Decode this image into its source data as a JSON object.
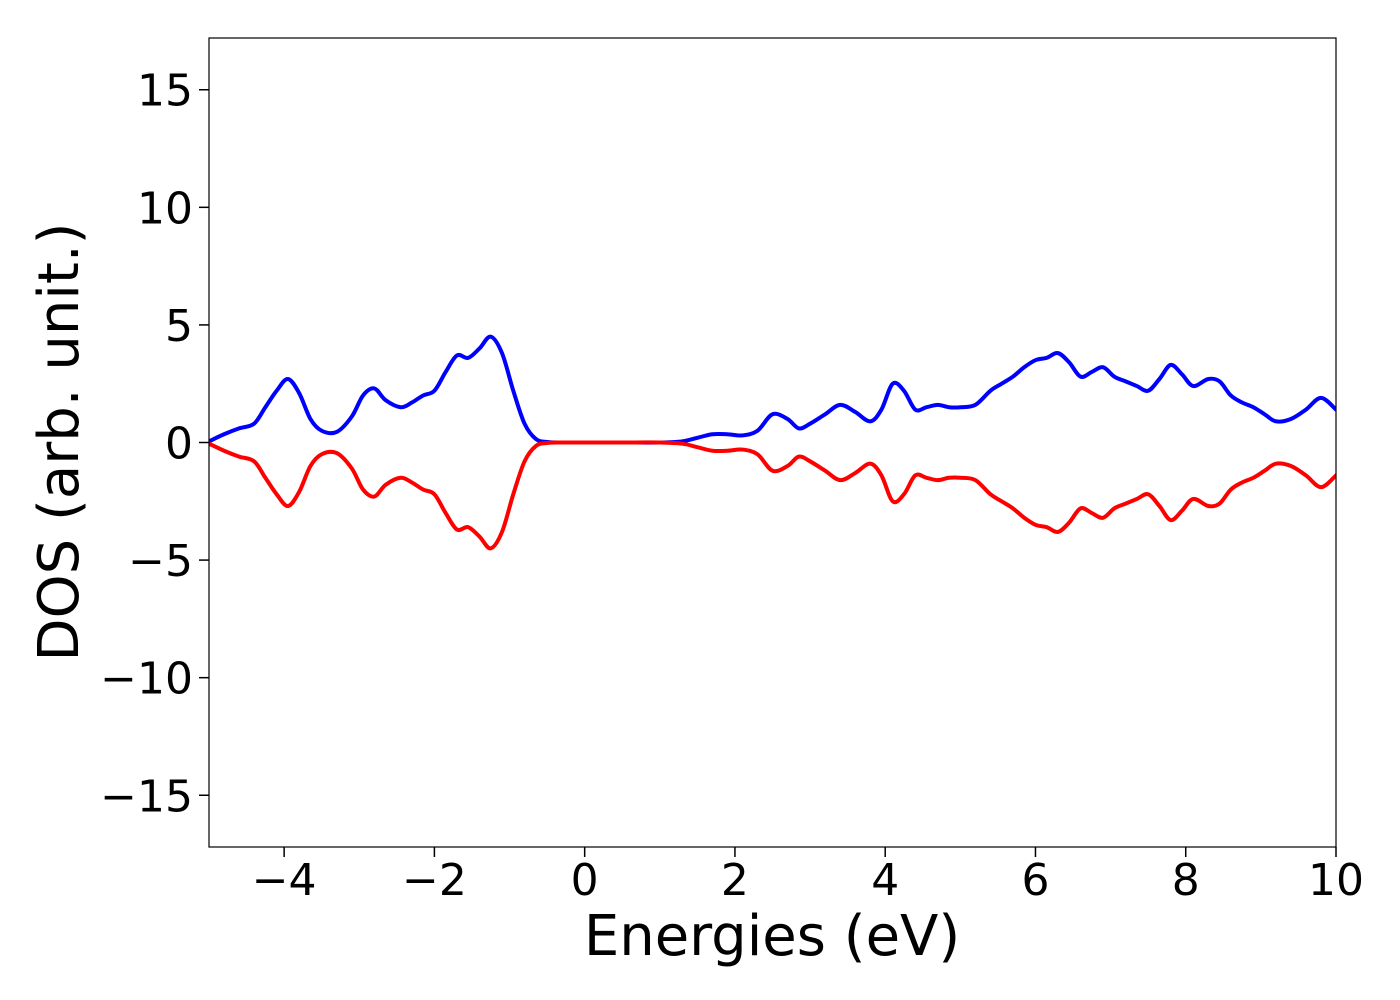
{
  "chart_data": {
    "type": "line",
    "title": "",
    "xlabel": "Energies (eV)",
    "ylabel": "DOS (arb. unit.)",
    "xlim": [
      -5,
      10
    ],
    "ylim": [
      -17.2,
      17.2
    ],
    "xticks": [
      -4,
      -2,
      0,
      2,
      4,
      6,
      8,
      10
    ],
    "xtick_labels": [
      "−4",
      "−2",
      "0",
      "2",
      "4",
      "6",
      "8",
      "10"
    ],
    "yticks": [
      15,
      10,
      5,
      0,
      -5,
      -10,
      -15
    ],
    "ytick_labels": [
      "15",
      "10",
      "5",
      "0",
      "−5",
      "−10",
      "−15"
    ],
    "grid": false,
    "legend": "none",
    "series": [
      {
        "color": "#0000ff",
        "x": [
          -5.0,
          -4.8,
          -4.6,
          -4.4,
          -4.25,
          -4.1,
          -3.95,
          -3.8,
          -3.65,
          -3.5,
          -3.3,
          -3.1,
          -2.95,
          -2.8,
          -2.65,
          -2.45,
          -2.3,
          -2.15,
          -2.0,
          -1.85,
          -1.7,
          -1.55,
          -1.4,
          -1.25,
          -1.1,
          -0.95,
          -0.8,
          -0.65,
          -0.5,
          -0.3,
          0.0,
          0.5,
          1.0,
          1.3,
          1.5,
          1.7,
          1.9,
          2.1,
          2.3,
          2.5,
          2.7,
          2.85,
          3.0,
          3.2,
          3.4,
          3.6,
          3.8,
          3.95,
          4.1,
          4.25,
          4.4,
          4.55,
          4.7,
          4.85,
          5.0,
          5.2,
          5.4,
          5.55,
          5.7,
          5.85,
          6.0,
          6.15,
          6.3,
          6.45,
          6.6,
          6.75,
          6.9,
          7.05,
          7.2,
          7.35,
          7.5,
          7.65,
          7.8,
          7.95,
          8.1,
          8.3,
          8.45,
          8.6,
          8.75,
          8.9,
          9.05,
          9.2,
          9.4,
          9.6,
          9.8,
          10.0
        ],
        "values": [
          0.05,
          0.35,
          0.6,
          0.8,
          1.5,
          2.2,
          2.7,
          2.1,
          1.0,
          0.5,
          0.45,
          1.1,
          2.0,
          2.3,
          1.8,
          1.5,
          1.7,
          2.0,
          2.2,
          3.0,
          3.7,
          3.6,
          4.0,
          4.5,
          3.8,
          2.2,
          0.8,
          0.15,
          0.02,
          0.0,
          0.0,
          0.0,
          0.0,
          0.05,
          0.2,
          0.35,
          0.35,
          0.3,
          0.5,
          1.2,
          1.0,
          0.6,
          0.8,
          1.2,
          1.6,
          1.3,
          0.9,
          1.4,
          2.5,
          2.2,
          1.4,
          1.5,
          1.6,
          1.5,
          1.5,
          1.6,
          2.2,
          2.5,
          2.8,
          3.2,
          3.5,
          3.6,
          3.8,
          3.4,
          2.8,
          3.0,
          3.2,
          2.8,
          2.6,
          2.4,
          2.2,
          2.7,
          3.3,
          2.9,
          2.4,
          2.7,
          2.6,
          2.0,
          1.7,
          1.5,
          1.2,
          0.9,
          1.0,
          1.4,
          1.9,
          1.4
        ]
      },
      {
        "color": "#ff0000",
        "x": [
          -5.0,
          -4.8,
          -4.6,
          -4.4,
          -4.25,
          -4.1,
          -3.95,
          -3.8,
          -3.65,
          -3.5,
          -3.3,
          -3.1,
          -2.95,
          -2.8,
          -2.65,
          -2.45,
          -2.3,
          -2.15,
          -2.0,
          -1.85,
          -1.7,
          -1.55,
          -1.4,
          -1.25,
          -1.1,
          -0.95,
          -0.8,
          -0.65,
          -0.5,
          -0.3,
          0.0,
          0.5,
          1.0,
          1.3,
          1.5,
          1.7,
          1.9,
          2.1,
          2.3,
          2.5,
          2.7,
          2.85,
          3.0,
          3.2,
          3.4,
          3.6,
          3.8,
          3.95,
          4.1,
          4.25,
          4.4,
          4.55,
          4.7,
          4.85,
          5.0,
          5.2,
          5.4,
          5.55,
          5.7,
          5.85,
          6.0,
          6.15,
          6.3,
          6.45,
          6.6,
          6.75,
          6.9,
          7.05,
          7.2,
          7.35,
          7.5,
          7.65,
          7.8,
          7.95,
          8.1,
          8.3,
          8.45,
          8.6,
          8.75,
          8.9,
          9.05,
          9.2,
          9.4,
          9.6,
          9.8,
          10.0
        ],
        "values": [
          -0.05,
          -0.35,
          -0.6,
          -0.8,
          -1.5,
          -2.2,
          -2.7,
          -2.1,
          -1.0,
          -0.5,
          -0.45,
          -1.1,
          -2.0,
          -2.3,
          -1.8,
          -1.5,
          -1.7,
          -2.0,
          -2.2,
          -3.0,
          -3.7,
          -3.6,
          -4.0,
          -4.5,
          -3.8,
          -2.2,
          -0.8,
          -0.15,
          -0.02,
          0.0,
          0.0,
          0.0,
          0.0,
          -0.05,
          -0.2,
          -0.35,
          -0.35,
          -0.3,
          -0.5,
          -1.2,
          -1.0,
          -0.6,
          -0.8,
          -1.2,
          -1.6,
          -1.3,
          -0.9,
          -1.4,
          -2.5,
          -2.2,
          -1.4,
          -1.5,
          -1.6,
          -1.5,
          -1.5,
          -1.6,
          -2.2,
          -2.5,
          -2.8,
          -3.2,
          -3.5,
          -3.6,
          -3.8,
          -3.4,
          -2.8,
          -3.0,
          -3.2,
          -2.8,
          -2.6,
          -2.4,
          -2.2,
          -2.7,
          -3.3,
          -2.9,
          -2.4,
          -2.7,
          -2.6,
          -2.0,
          -1.7,
          -1.5,
          -1.2,
          -0.9,
          -1.0,
          -1.4,
          -1.9,
          -1.4
        ]
      }
    ]
  }
}
